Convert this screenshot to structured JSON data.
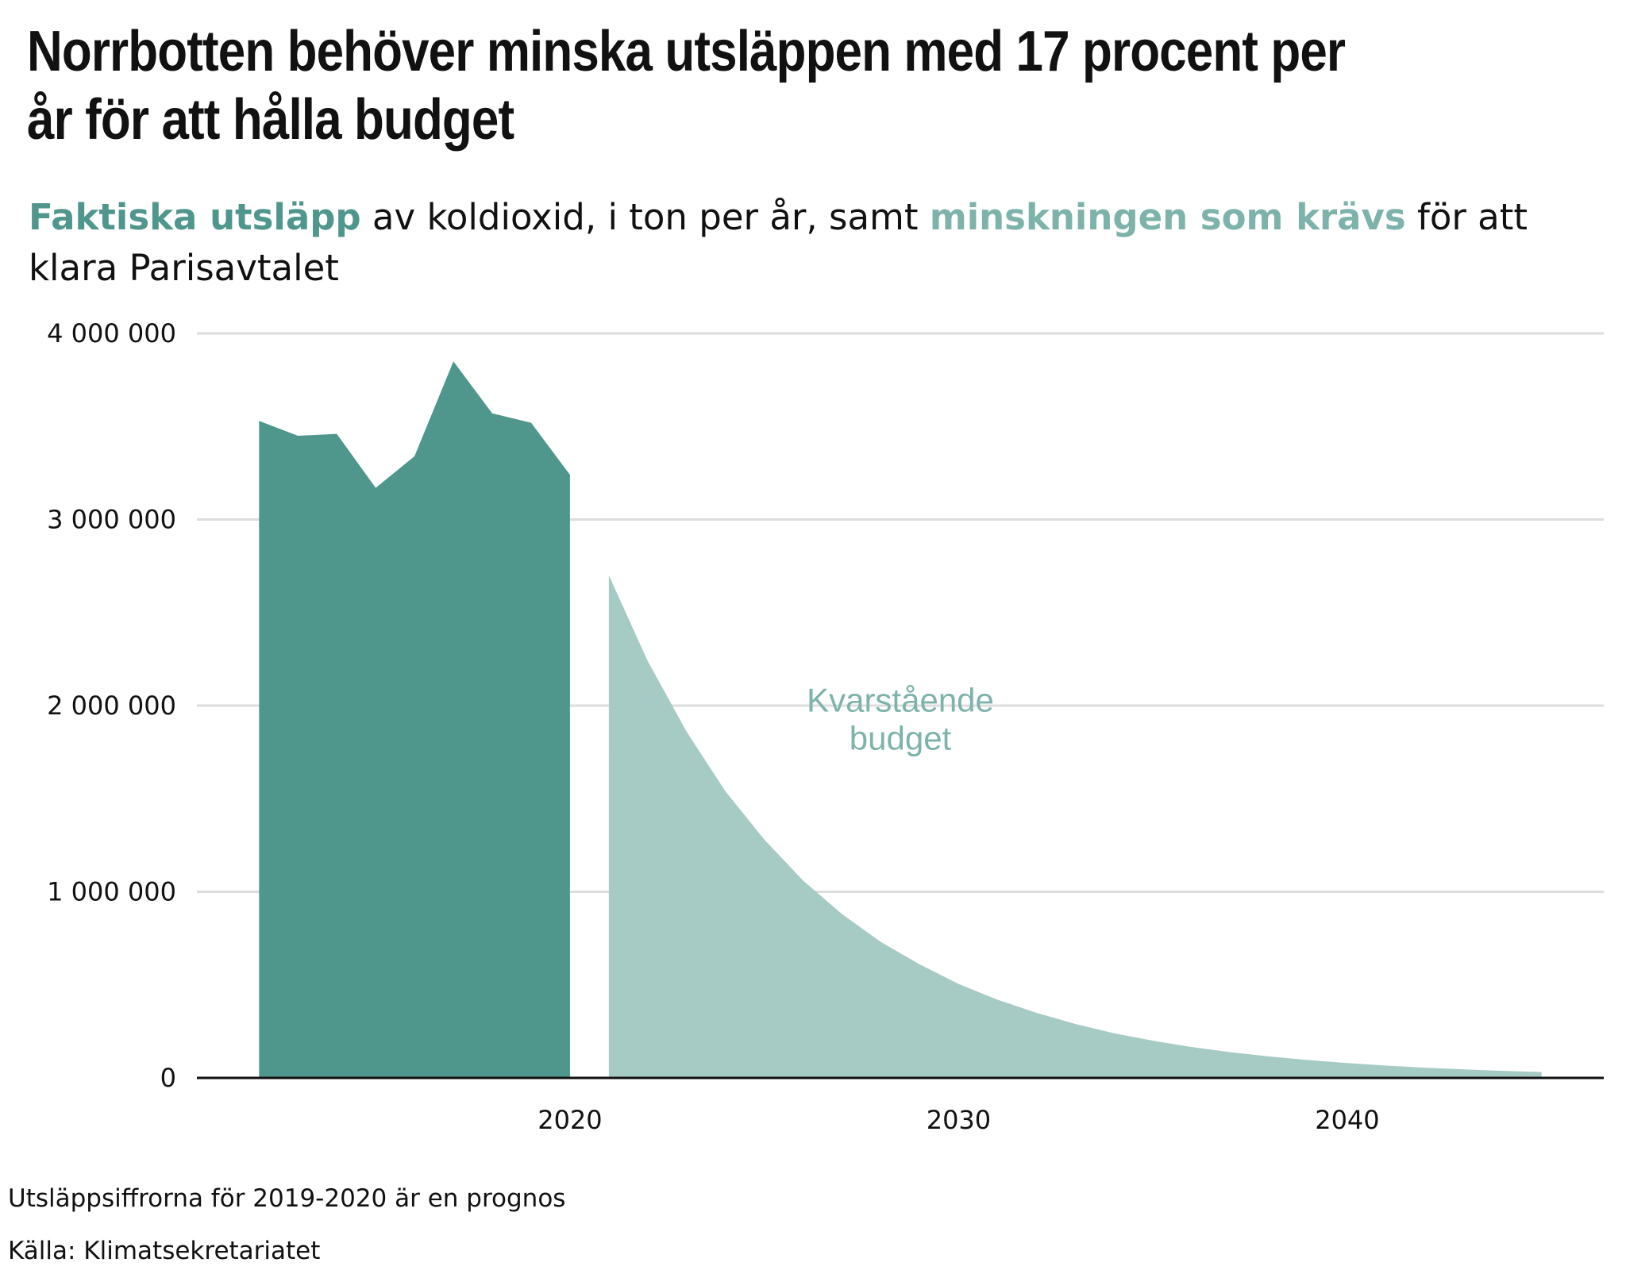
{
  "title": "Norrbotten behöver minska utsläppen med 17 procent per år för att hålla budget",
  "subtitle": {
    "highlight_actual": "Faktiska utsläpp",
    "text_1": " av koldioxid, i ton per år, samt ",
    "highlight_required": "minskningen som krävs",
    "text_2": " för att klara Parisavtalet"
  },
  "footnote": "Utsläppsiffrorna för 2019-2020 är en prognos",
  "source": "Källa: Klimatsekretariatet",
  "colors": {
    "actual": "#4f978c",
    "required": "#a6cbc5",
    "required_label": "#7db3aa",
    "grid": "#dddddd",
    "axis": "#111111"
  },
  "chart_data": {
    "type": "area",
    "xlim": [
      2010.4,
      2046.6
    ],
    "ylim": [
      0,
      4000000
    ],
    "yticks": [
      0,
      1000000,
      2000000,
      3000000,
      4000000
    ],
    "ytick_labels": [
      "0",
      "1 000 000",
      "2 000 000",
      "3 000 000",
      "4 000 000"
    ],
    "xticks": [
      2020,
      2030,
      2040
    ],
    "xtick_labels": [
      "2020",
      "2030",
      "2040"
    ],
    "grid": "horizontal",
    "annotation": {
      "text_line1": "Kvarstående",
      "text_line2": "budget",
      "x": 2028.5,
      "y": 1900000
    },
    "series": [
      {
        "name": "Faktiska utsläpp",
        "x": [
          2012,
          2013,
          2014,
          2015,
          2016,
          2017,
          2018,
          2019,
          2020
        ],
        "y": [
          3530000,
          3450000,
          3460000,
          3170000,
          3340000,
          3850000,
          3570000,
          3520000,
          3240000
        ]
      },
      {
        "name": "minskningen som krävs",
        "x": [
          2021,
          2022,
          2023,
          2024,
          2025,
          2026,
          2027,
          2028,
          2029,
          2030,
          2031,
          2032,
          2033,
          2034,
          2035,
          2036,
          2037,
          2038,
          2039,
          2040,
          2041,
          2042,
          2043,
          2044,
          2045
        ],
        "y": [
          2700000,
          2240000,
          1860000,
          1540000,
          1280000,
          1060000,
          880000,
          730000,
          610000,
          505000,
          420000,
          350000,
          290000,
          240000,
          200000,
          166000,
          138000,
          115000,
          96000,
          80000,
          66000,
          55000,
          46000,
          38000,
          32000
        ]
      }
    ]
  }
}
